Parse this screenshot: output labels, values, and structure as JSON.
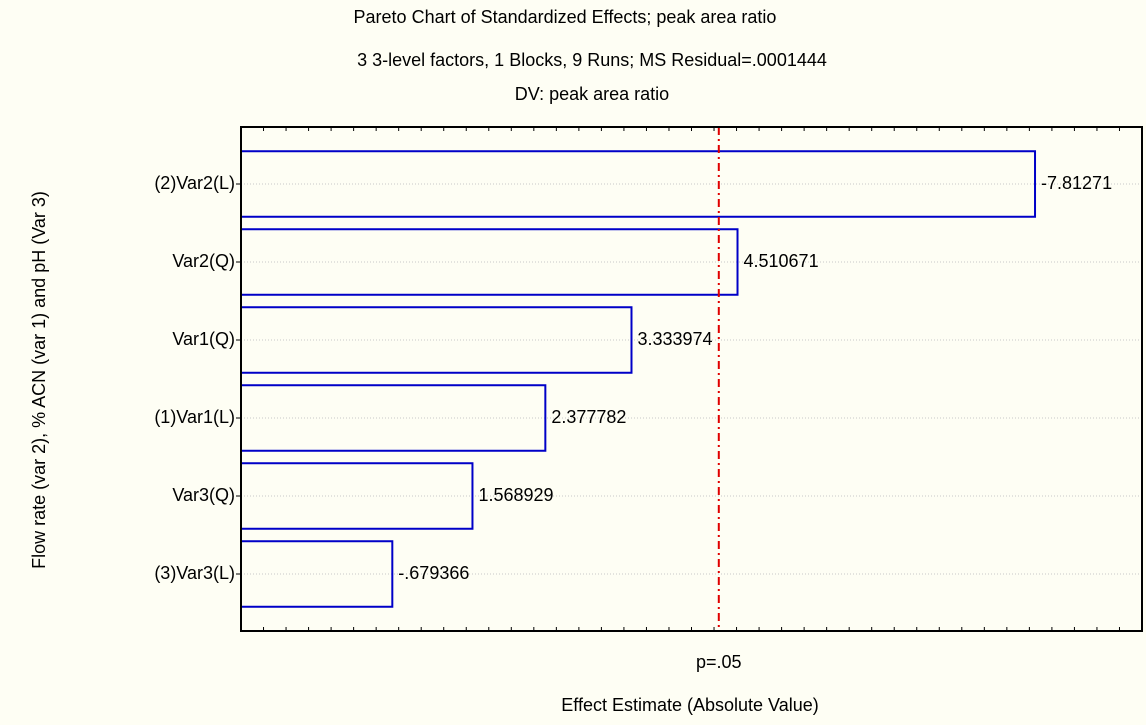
{
  "chart_data": {
    "type": "pareto",
    "title": "Pareto Chart of Standardized Effects; peak area ratio",
    "subtitle": "3 3-level factors, 1 Blocks, 9 Runs; MS Residual=.0001444",
    "subtitle2": "DV: peak area ratio",
    "x_label": "Effect Estimate (Absolute Value)",
    "y_label": "Flow rate (var 2), % ACN (var 1) and pH (Var 3)",
    "categories": [
      "(2)Var2(L)",
      "Var2(Q)",
      "Var1(Q)",
      "(1)Var1(L)",
      "Var3(Q)",
      "(3)Var3(L)"
    ],
    "values": [
      7.81271,
      4.510671,
      3.333974,
      2.377782,
      1.568929,
      0.679366
    ],
    "value_labels": [
      "-7.81271",
      "4.510671",
      "3.333974",
      "2.377782",
      "1.568929",
      "-.679366"
    ],
    "color": "#0000c8",
    "reference_line": {
      "value": 4.303,
      "label": "p=.05",
      "color": "#e00000"
    },
    "xlim": [
      -1,
      9
    ],
    "xticks": [
      -1,
      -0.75,
      -0.5,
      -0.25,
      0,
      0.25,
      0.5,
      0.75,
      1,
      1.25,
      1.5,
      1.75,
      2,
      2.25,
      2.5,
      2.75,
      3,
      3.25,
      3.5,
      3.75,
      4,
      4.25,
      4.5,
      4.75,
      5,
      5.25,
      5.5,
      5.75,
      6,
      6.25,
      6.5,
      6.75,
      7,
      7.25,
      7.5,
      7.75,
      8,
      8.25,
      8.5,
      8.75,
      9
    ],
    "grid": true
  }
}
